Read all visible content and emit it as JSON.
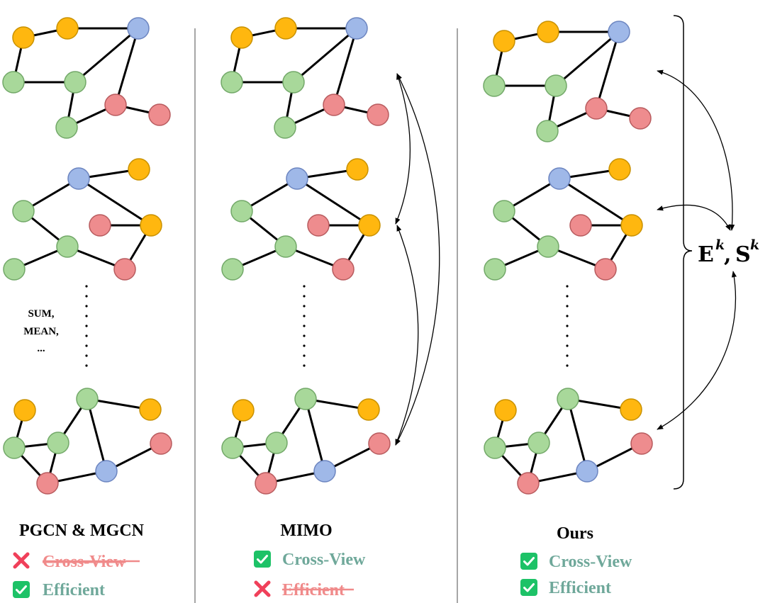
{
  "colors": {
    "orange": "#FFB70F",
    "orange_stroke": "#C99100",
    "green": "#A8D89A",
    "green_stroke": "#72A868",
    "blue": "#9FB8E8",
    "blue_stroke": "#6C85C0",
    "red": "#EE8C8E",
    "red_stroke": "#B85B5E",
    "feature_ok": "#6FA89A",
    "feature_bad": "#F08A8A",
    "check_bg": "#1DC267",
    "cross": "#F0405A"
  },
  "panels": [
    {
      "title": "PGCN & MGCN",
      "features": [
        {
          "label": "Cross-View",
          "ok": false
        },
        {
          "label": "Efficient",
          "ok": true
        }
      ],
      "aggregation": [
        "SUM,",
        "MEAN,",
        "..."
      ]
    },
    {
      "title": "MIMO",
      "features": [
        {
          "label": "Cross-View",
          "ok": true
        },
        {
          "label": "Efficient",
          "ok": false
        }
      ]
    },
    {
      "title": "Ours",
      "features": [
        {
          "label": "Cross-View",
          "ok": true
        },
        {
          "label": "Efficient",
          "ok": true
        }
      ]
    }
  ],
  "ours_formula": {
    "E": "E",
    "S": "S",
    "k": "k"
  }
}
